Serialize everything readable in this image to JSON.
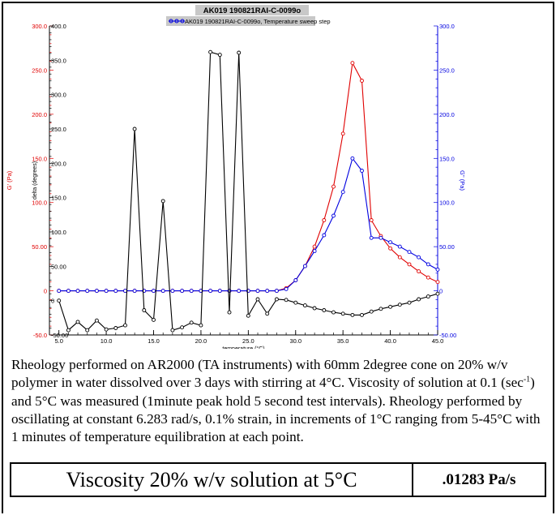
{
  "chart_data": {
    "type": "line",
    "title": "AK019 190821RAI-C-0099o",
    "legend": {
      "placement": "top-center",
      "entry": "AK019 190821RAI-C-0099o, Temperature sweep step"
    },
    "xlabel": "temperature (°C)",
    "x_ticks": [
      "5.0",
      "10.0",
      "15.0",
      "20.0",
      "25.0",
      "30.0",
      "35.0",
      "40.0",
      "45.0"
    ],
    "xlim": [
      4,
      45
    ],
    "axes": {
      "gprime": {
        "label": "G' (Pa)",
        "ylim": [
          -50,
          300
        ],
        "ticks": [
          "-50.0",
          "0",
          "50.00",
          "100.0",
          "150.0",
          "200.0",
          "250.0",
          "300.0"
        ],
        "color": "#e00000"
      },
      "delta": {
        "label": "delta (degrees)",
        "ylim": [
          -50,
          400
        ],
        "ticks": [
          "-50.00",
          "0",
          "50.00",
          "100.0",
          "150.0",
          "200.0",
          "250.0",
          "300.0",
          "350.0",
          "400.0"
        ],
        "color": "#000000"
      },
      "gdoubleprime": {
        "label": "G'' (Pa)",
        "ylim": [
          -50,
          300
        ],
        "ticks": [
          "-50.00",
          "0",
          "50.00",
          "100.0",
          "150.0",
          "200.0",
          "250.0",
          "300.0"
        ],
        "color": "#0000e0"
      }
    },
    "grid": false,
    "series": [
      {
        "name": "G'",
        "axis": "gprime",
        "color": "#e00000",
        "x": [
          5,
          6,
          7,
          8,
          9,
          10,
          11,
          12,
          13,
          14,
          15,
          16,
          17,
          18,
          19,
          20,
          21,
          22,
          23,
          24,
          25,
          26,
          27,
          28,
          29,
          30,
          31,
          32,
          33,
          34,
          35,
          36,
          37,
          38,
          39,
          40,
          41,
          42,
          43,
          44,
          45
        ],
        "y": [
          0,
          0,
          0,
          0,
          0,
          0,
          0,
          0,
          0,
          0,
          0,
          0,
          0,
          0,
          0,
          0,
          0,
          0,
          0,
          0,
          0,
          0,
          0,
          0,
          3,
          12,
          28,
          50,
          80,
          118,
          178,
          258,
          238,
          80,
          62,
          48,
          38,
          30,
          22,
          15,
          10
        ]
      },
      {
        "name": "G''",
        "axis": "gdoubleprime",
        "color": "#0000e0",
        "x": [
          5,
          6,
          7,
          8,
          9,
          10,
          11,
          12,
          13,
          14,
          15,
          16,
          17,
          18,
          19,
          20,
          21,
          22,
          23,
          24,
          25,
          26,
          27,
          28,
          29,
          30,
          31,
          32,
          33,
          34,
          35,
          36,
          37,
          38,
          39,
          40,
          41,
          42,
          43,
          44,
          45
        ],
        "y": [
          0,
          0,
          0,
          0,
          0,
          0,
          0,
          0,
          0,
          0,
          0,
          0,
          0,
          0,
          0,
          0,
          0,
          0,
          0,
          0,
          0,
          0,
          0,
          0,
          2,
          12,
          28,
          45,
          63,
          85,
          112,
          150,
          136,
          60,
          60,
          55,
          50,
          44,
          38,
          30,
          24
        ]
      },
      {
        "name": "delta",
        "axis": "delta",
        "color": "#000000",
        "x": [
          5,
          6,
          7,
          8,
          9,
          10,
          11,
          12,
          13,
          14,
          15,
          16,
          17,
          18,
          19,
          20,
          21,
          22,
          23,
          24,
          25,
          26,
          27,
          28,
          29,
          30,
          31,
          32,
          33,
          34,
          35,
          36,
          37,
          38,
          39,
          40,
          41,
          42,
          43,
          44,
          45
        ],
        "y": [
          0,
          -43,
          -31,
          -43,
          -29,
          -42,
          -40,
          -36,
          250,
          -14,
          -28,
          145,
          -43,
          -39,
          -32,
          -36,
          362,
          358,
          -17,
          361,
          -22,
          2,
          -19,
          2,
          1,
          -3,
          -7,
          -11,
          -14,
          -17,
          -19,
          -21,
          -21,
          -16,
          -12,
          -9,
          -6,
          -3,
          2,
          6,
          10
        ]
      }
    ]
  },
  "description": {
    "part1": "Rheology  performed on AR2000 (TA instruments) with 60mm 2degree cone on 20% w/v polymer in water dissolved over 3 days with stirring at 4°C. Viscosity of solution at 0.1 (sec",
    "superscript": "-1",
    "part2": ") and 5°C was measured (1minute peak hold 5 second test intervals). Rheology performed by oscillating at constant 6.283 rad/s, 0.1% strain, in increments of 1°C ranging from 5-45°C with 1 minutes of temperature equilibration at each point."
  },
  "result": {
    "label": "Viscosity 20% w/v solution at 5°C",
    "value": ".01283 Pa/s"
  }
}
